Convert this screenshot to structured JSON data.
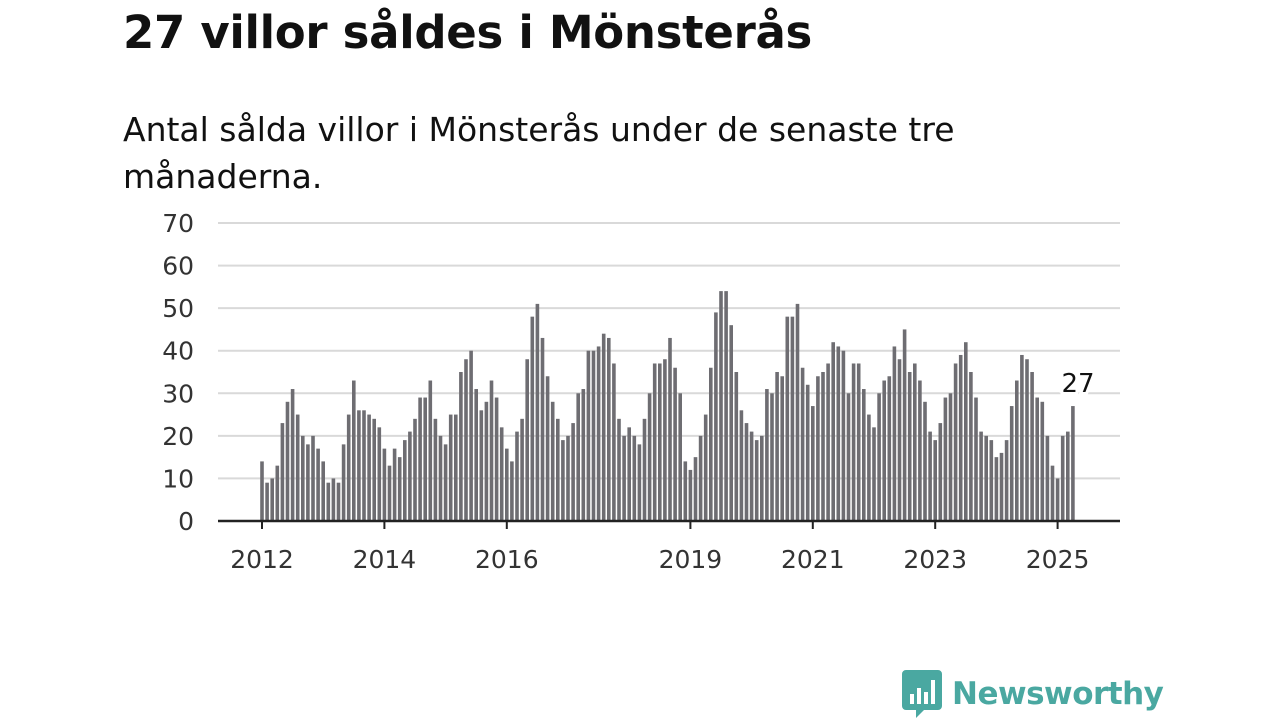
{
  "header": {
    "title": "27 villor såldes i Mönsterås",
    "subtitle": "Antal sålda villor i Mönsterås under de senaste tre månaderna."
  },
  "brand": {
    "name": "Newsworthy",
    "icon": "bar-chart-speech-bubble-icon",
    "color": "#4aa8a1"
  },
  "colors": {
    "bar": "#6e6d72",
    "highlight": "#2a9d94",
    "grid": "#d9d9d9",
    "axis": "#222222",
    "text": "#333333"
  },
  "chart_data": {
    "type": "bar",
    "title": "27 villor såldes i Mönsterås",
    "subtitle": "Antal sålda villor i Mönsterås under de senaste tre månaderna.",
    "xlabel": "",
    "ylabel": "",
    "ylim": [
      0,
      70
    ],
    "yticks": [
      0,
      10,
      20,
      30,
      40,
      50,
      60,
      70
    ],
    "grid": true,
    "xtick_labels": [
      {
        "label": "2012",
        "index": 0
      },
      {
        "label": "2014",
        "index": 24
      },
      {
        "label": "2016",
        "index": 48
      },
      {
        "label": "2019",
        "index": 84
      },
      {
        "label": "2021",
        "index": 108
      },
      {
        "label": "2023",
        "index": 132
      },
      {
        "label": "2025",
        "index": 156
      }
    ],
    "start": "2012-01",
    "frequency": "monthly",
    "series": [
      {
        "values": [
          14,
          9,
          10,
          13,
          23,
          28,
          31,
          25,
          20,
          18,
          20,
          17,
          14,
          9,
          10,
          9,
          18,
          25,
          33,
          26,
          26,
          25,
          24,
          22,
          17,
          13,
          17,
          15,
          19,
          21,
          24,
          29,
          29,
          33,
          24,
          20,
          18,
          25,
          25,
          35,
          38,
          40,
          31,
          26,
          28,
          33,
          29,
          22,
          17,
          14,
          21,
          24,
          38,
          48,
          51,
          43,
          34,
          28,
          24,
          19,
          20,
          23,
          30,
          31,
          40,
          40,
          41,
          44,
          43,
          37,
          24,
          20,
          22,
          20,
          18,
          24,
          30,
          37,
          37,
          38,
          43,
          36,
          30,
          14,
          12,
          15,
          20,
          25,
          36,
          49,
          54,
          54,
          46,
          35,
          26,
          23,
          21,
          19,
          20,
          31,
          30,
          35,
          34,
          48,
          48,
          51,
          36,
          32,
          27,
          34,
          35,
          37,
          42,
          41,
          40,
          30,
          37,
          37,
          31,
          25,
          22,
          30,
          33,
          34,
          41,
          38,
          45,
          35,
          37,
          33,
          28,
          21,
          19,
          23,
          29,
          30,
          37,
          39,
          42,
          35,
          29,
          21,
          20,
          19,
          15,
          16,
          19,
          27,
          33,
          39,
          38,
          35,
          29,
          28,
          20,
          13,
          10,
          20,
          21,
          27
        ]
      }
    ],
    "highlight": {
      "index": 160,
      "label": "27",
      "value": 27
    }
  }
}
